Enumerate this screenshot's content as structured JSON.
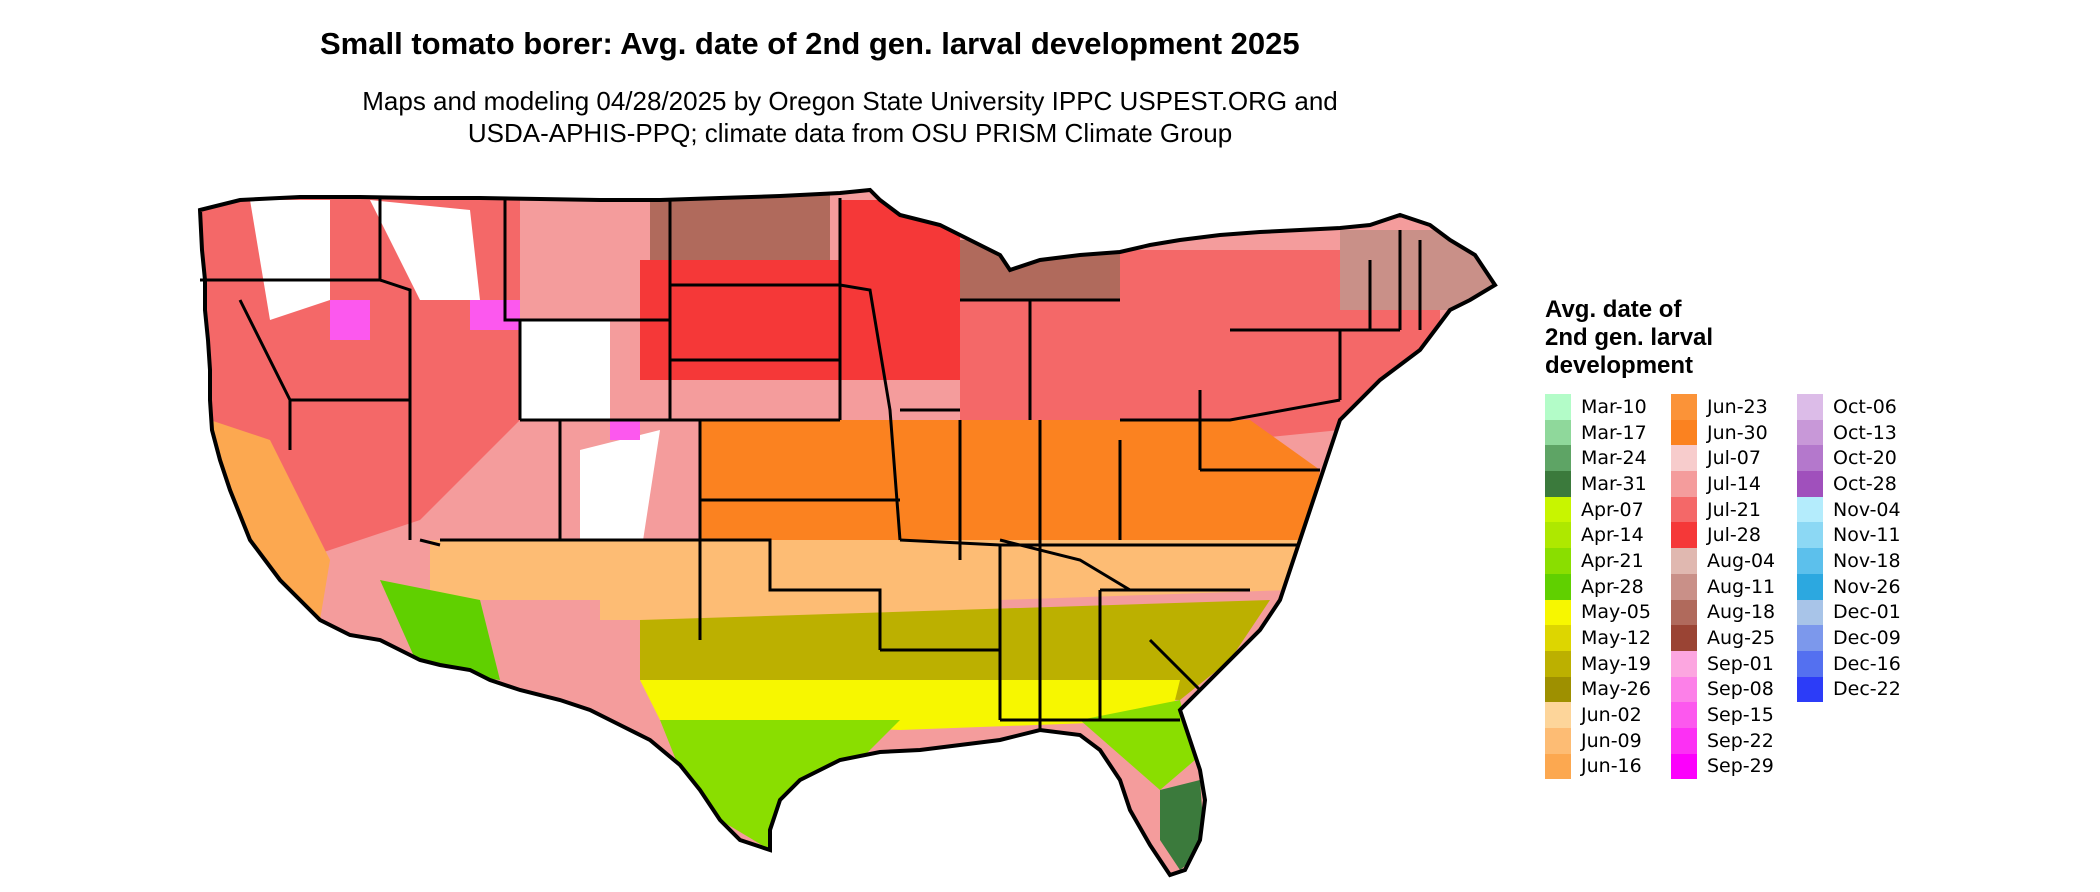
{
  "title": "Small tomato borer: Avg. date of 2nd gen. larval development 2025",
  "subtitle_line1": "Maps and modeling 04/28/2025 by Oregon State University IPPC USPEST.ORG and",
  "subtitle_line2": "USDA-APHIS-PPQ; climate data from OSU PRISM Climate Group",
  "legend": {
    "title_line1": "Avg. date of",
    "title_line2": "2nd gen. larval",
    "title_line3": "development",
    "columns": [
      [
        {
          "label": "Mar-10",
          "color": "#b3fcc8"
        },
        {
          "label": "Mar-17",
          "color": "#8fd89b"
        },
        {
          "label": "Mar-24",
          "color": "#5ea465"
        },
        {
          "label": "Mar-31",
          "color": "#3b7a3c"
        },
        {
          "label": "Apr-07",
          "color": "#c8f500"
        },
        {
          "label": "Apr-14",
          "color": "#aee800"
        },
        {
          "label": "Apr-21",
          "color": "#8ade00"
        },
        {
          "label": "Apr-28",
          "color": "#60d000"
        },
        {
          "label": "May-05",
          "color": "#f7f700"
        },
        {
          "label": "May-12",
          "color": "#ddd600"
        },
        {
          "label": "May-19",
          "color": "#bcb000"
        },
        {
          "label": "May-26",
          "color": "#9e9000"
        },
        {
          "label": "Jun-02",
          "color": "#fdd59a"
        },
        {
          "label": "Jun-09",
          "color": "#fdbc74"
        },
        {
          "label": "Jun-16",
          "color": "#fca850"
        }
      ],
      [
        {
          "label": "Jun-23",
          "color": "#fb9338"
        },
        {
          "label": "Jun-30",
          "color": "#fb8220"
        },
        {
          "label": "Jul-07",
          "color": "#f7cccc"
        },
        {
          "label": "Jul-14",
          "color": "#f49c9c"
        },
        {
          "label": "Jul-21",
          "color": "#f46868"
        },
        {
          "label": "Jul-28",
          "color": "#f53838"
        },
        {
          "label": "Aug-04",
          "color": "#e0b8b0"
        },
        {
          "label": "Aug-11",
          "color": "#c99088"
        },
        {
          "label": "Aug-18",
          "color": "#b06a5c"
        },
        {
          "label": "Aug-25",
          "color": "#9a4434"
        },
        {
          "label": "Sep-01",
          "color": "#fca6e0"
        },
        {
          "label": "Sep-08",
          "color": "#fc80e8"
        },
        {
          "label": "Sep-15",
          "color": "#fc58ee"
        },
        {
          "label": "Sep-22",
          "color": "#fc30f4"
        },
        {
          "label": "Sep-29",
          "color": "#fc00fc"
        }
      ],
      [
        {
          "label": "Oct-06",
          "color": "#dcbce8"
        },
        {
          "label": "Oct-13",
          "color": "#c898d8"
        },
        {
          "label": "Oct-20",
          "color": "#b478cc"
        },
        {
          "label": "Oct-28",
          "color": "#a050bc"
        },
        {
          "label": "Nov-04",
          "color": "#b4ecfc"
        },
        {
          "label": "Nov-11",
          "color": "#8cd8f4"
        },
        {
          "label": "Nov-18",
          "color": "#5cc0ec"
        },
        {
          "label": "Nov-26",
          "color": "#2ca8e0"
        },
        {
          "label": "Dec-01",
          "color": "#a8c4e8"
        },
        {
          "label": "Dec-09",
          "color": "#7c98ec"
        },
        {
          "label": "Dec-16",
          "color": "#5470f0"
        },
        {
          "label": "Dec-22",
          "color": "#2c3cf8"
        }
      ]
    ]
  },
  "map": {
    "region": "contiguous-united-states",
    "zone_colors": {
      "pacific_northwest": "#f46868",
      "mountains_high": "#ffffff",
      "mountain_fringe": "#fc58ee",
      "northern_plains": "#f53838",
      "great_lakes": "#b06a5c",
      "upper_midwest": "#f49c9c",
      "central_belt": "#fb8220",
      "mid_south": "#fdbc74",
      "lower_south": "#bcb000",
      "gulf_coast": "#f7f700",
      "south_texas": "#8ade00",
      "south_florida": "#3b7a3c",
      "california_valley": "#fca850",
      "desert_southwest": "#60d000",
      "northeast": "#f46868",
      "new_england_north": "#c99088"
    }
  }
}
